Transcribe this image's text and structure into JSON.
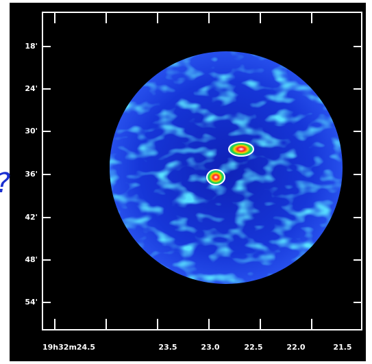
{
  "figure": {
    "y_tick_labels": [
      "18'",
      "24'",
      "30'",
      "36'",
      "42'",
      "48'",
      "54'"
    ],
    "x_tick_labels": [
      "19h32m24.5",
      "23.5",
      "23.0",
      "22.5",
      "22.0",
      "21.5"
    ],
    "stray_text": "?"
  }
}
